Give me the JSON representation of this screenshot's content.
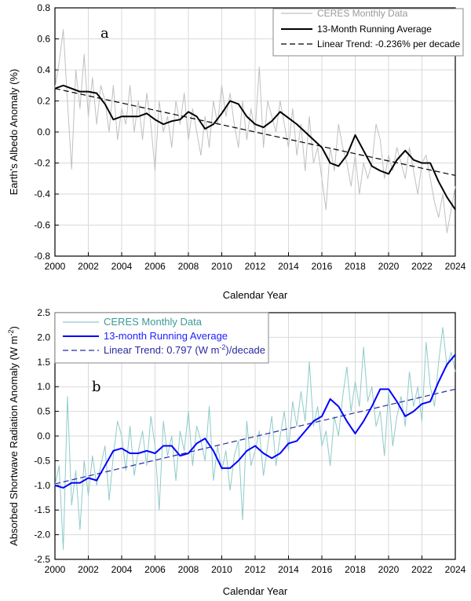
{
  "chart_data": [
    {
      "type": "line",
      "panel_label": "a",
      "xlabel": "Calendar Year",
      "ylabel": "Earth's Albedo Anomaly (%)",
      "xlim": [
        2000,
        2024
      ],
      "ylim": [
        -0.8,
        0.8
      ],
      "xticks": [
        "2000",
        "2002",
        "2004",
        "2006",
        "2008",
        "2010",
        "2012",
        "2014",
        "2016",
        "2018",
        "2020",
        "2022",
        "2024"
      ],
      "yticks": [
        "0.8",
        "0.6",
        "0.4",
        "0.2",
        "0.0",
        "-0.2",
        "-0.4",
        "-0.6",
        "-0.8"
      ],
      "grid": true,
      "legend_placement": "top-right",
      "series": [
        {
          "name": "CERES Monthly Data",
          "color": "#c0c0c0",
          "style": "solid",
          "x_start": 2000,
          "x_end": 2024,
          "values": [
            0.28,
            0.45,
            0.66,
            0.2,
            -0.24,
            0.4,
            0.15,
            0.5,
            0.1,
            0.35,
            0.05,
            0.3,
            0.2,
            0.0,
            0.3,
            -0.05,
            0.15,
            0.05,
            0.3,
            0.0,
            0.2,
            -0.05,
            0.25,
            0.05,
            -0.25,
            0.2,
            0.0,
            0.1,
            -0.1,
            0.2,
            0.05,
            0.25,
            -0.05,
            0.15,
            0.0,
            -0.15,
            0.1,
            -0.1,
            0.2,
            0.05,
            0.3,
            0.1,
            0.25,
            0.05,
            -0.1,
            0.2,
            -0.05,
            0.15,
            0.0,
            0.42,
            -0.1,
            0.2,
            0.1,
            0.0,
            0.2,
            0.05,
            -0.1,
            0.15,
            -0.15,
            0.05,
            -0.25,
            0.1,
            -0.2,
            -0.1,
            -0.3,
            -0.5,
            -0.1,
            -0.25,
            0.05,
            -0.1,
            -0.2,
            -0.35,
            -0.15,
            -0.4,
            -0.2,
            -0.3,
            -0.2,
            0.05,
            -0.05,
            -0.3,
            -0.15,
            -0.25,
            -0.1,
            -0.2,
            -0.3,
            -0.1,
            -0.25,
            -0.4,
            -0.2,
            -0.15,
            -0.3,
            -0.45,
            -0.55,
            -0.4,
            -0.65,
            -0.5,
            -0.35
          ]
        },
        {
          "name": "13-Month Running Average",
          "color": "#000000",
          "style": "solid",
          "x_start": 2000,
          "x_end": 2024,
          "values": [
            0.28,
            0.3,
            0.28,
            0.26,
            0.26,
            0.25,
            0.18,
            0.08,
            0.1,
            0.1,
            0.1,
            0.12,
            0.08,
            0.05,
            0.07,
            0.08,
            0.13,
            0.1,
            0.02,
            0.05,
            0.12,
            0.2,
            0.18,
            0.1,
            0.05,
            0.03,
            0.07,
            0.13,
            0.09,
            0.05,
            0.0,
            -0.05,
            -0.1,
            -0.2,
            -0.22,
            -0.15,
            -0.02,
            -0.12,
            -0.22,
            -0.25,
            -0.27,
            -0.18,
            -0.12,
            -0.18,
            -0.2,
            -0.2,
            -0.32,
            -0.42,
            -0.5
          ]
        },
        {
          "name": "Linear Trend: -0.236% per decade",
          "color": "#000000",
          "style": "dashed",
          "x": [
            2000,
            2024
          ],
          "values": [
            0.28,
            -0.28
          ]
        }
      ]
    },
    {
      "type": "line",
      "panel_label": "b",
      "xlabel": "Calendar Year",
      "ylabel": "Absorbed Shortwave Radiation Anomaly (W m",
      "ylabel_sup": "-2",
      "ylabel_end": ")",
      "xlim": [
        2000,
        2024
      ],
      "ylim": [
        -2.5,
        2.5
      ],
      "xticks": [
        "2000",
        "2002",
        "2004",
        "2006",
        "2008",
        "2010",
        "2012",
        "2014",
        "2016",
        "2018",
        "2020",
        "2022",
        "2024"
      ],
      "yticks": [
        "2.5",
        "2.0",
        "1.5",
        "1.0",
        "0.5",
        "0.0",
        "-0.5",
        "-1.0",
        "-1.5",
        "-2.0",
        "-2.5"
      ],
      "grid": true,
      "legend_placement": "top-left",
      "series": [
        {
          "name": "CERES Monthly Data",
          "color": "#8ecbc8",
          "style": "solid",
          "x_start": 2000,
          "x_end": 2024,
          "values": [
            -1.0,
            -0.6,
            -2.3,
            0.8,
            -1.4,
            -0.7,
            -1.9,
            -0.5,
            -1.2,
            -0.4,
            -1.0,
            -0.6,
            -0.2,
            -1.3,
            -0.4,
            0.3,
            0.0,
            -0.7,
            0.2,
            -0.8,
            -0.3,
            0.1,
            -0.6,
            0.4,
            -0.2,
            -1.5,
            0.3,
            -0.4,
            0.0,
            -0.9,
            0.1,
            -0.3,
            0.5,
            -0.6,
            0.2,
            -0.1,
            -0.5,
            0.6,
            -0.9,
            -0.2,
            -0.7,
            -0.3,
            -1.1,
            -0.4,
            -0.1,
            -1.7,
            0.3,
            -0.6,
            -0.3,
            0.1,
            -0.8,
            -0.2,
            0.4,
            -0.6,
            0.0,
            0.5,
            -0.3,
            0.7,
            0.2,
            0.9,
            0.3,
            1.5,
            0.2,
            0.6,
            -0.2,
            0.1,
            -0.6,
            0.4,
            0.0,
            0.8,
            1.4,
            0.5,
            1.1,
            0.6,
            1.8,
            0.7,
            1.0,
            0.2,
            0.5,
            -0.4,
            0.9,
            -0.2,
            0.4,
            0.8,
            0.2,
            1.3,
            0.6,
            1.0,
            0.3,
            1.9,
            1.0,
            0.6,
            1.5,
            2.2,
            1.4,
            1.7,
            1.3
          ]
        },
        {
          "name": "13-month Running Average",
          "color": "#0000ff",
          "style": "solid",
          "x_start": 2000,
          "x_end": 2024,
          "values": [
            -1.0,
            -1.05,
            -0.95,
            -0.95,
            -0.85,
            -0.9,
            -0.6,
            -0.3,
            -0.25,
            -0.35,
            -0.35,
            -0.3,
            -0.35,
            -0.2,
            -0.2,
            -0.4,
            -0.35,
            -0.15,
            -0.05,
            -0.3,
            -0.65,
            -0.65,
            -0.5,
            -0.3,
            -0.2,
            -0.35,
            -0.45,
            -0.35,
            -0.15,
            -0.1,
            0.1,
            0.3,
            0.4,
            0.75,
            0.6,
            0.3,
            0.05,
            0.3,
            0.6,
            0.95,
            0.95,
            0.7,
            0.4,
            0.5,
            0.65,
            0.7,
            1.1,
            1.45,
            1.65
          ]
        },
        {
          "name": "Linear Trend: 0.797 (W m",
          "name_sup": "-2",
          "name_end": ")/decade",
          "color": "#2a2aa0",
          "style": "dashed",
          "x": [
            2000,
            2024
          ],
          "values": [
            -0.97,
            0.95
          ]
        }
      ]
    }
  ]
}
